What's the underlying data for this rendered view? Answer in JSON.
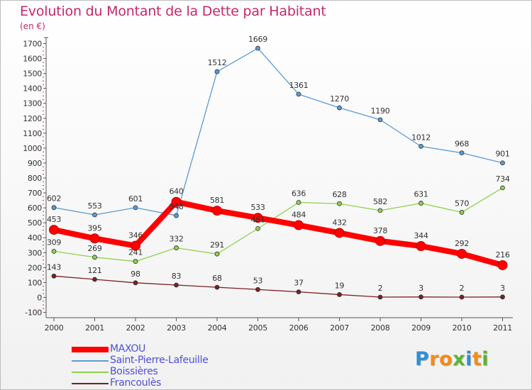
{
  "title": "Evolution du Montant de la Dette par Habitant",
  "subtitle": "(en €)",
  "logo": {
    "letters": [
      "P",
      "r",
      "o",
      "x",
      "i",
      "t",
      "i"
    ],
    "colors": [
      "#2f8fd8",
      "#f28c1c",
      "#f28c1c",
      "#5bb432",
      "#2f8fd8",
      "#f28c1c",
      "#5bb432"
    ]
  },
  "chart_data": {
    "type": "line",
    "title": "Evolution du Montant de la Dette par Habitant",
    "ylabel": "(en €)",
    "xlabel": "",
    "x": [
      "2000",
      "2001",
      "2002",
      "2003",
      "2004",
      "2005",
      "2006",
      "2007",
      "2008",
      "2009",
      "2010",
      "2011"
    ],
    "ylim": [
      -100,
      1700
    ],
    "yticks": [
      "-100",
      "0",
      "100",
      "200",
      "300",
      "400",
      "500",
      "600",
      "700",
      "800",
      "900",
      "1000",
      "1100",
      "1200",
      "1300",
      "1400",
      "1500",
      "1600",
      "1700"
    ],
    "grid": false,
    "legend_position": "bottom-left",
    "series": [
      {
        "name": "MAXOU",
        "color": "#ff0000",
        "values": [
          453,
          395,
          346,
          640,
          581,
          533,
          484,
          432,
          378,
          344,
          292,
          216
        ]
      },
      {
        "name": "Saint-Pierre-Lafeuille",
        "color": "#5b9bd5",
        "values": [
          602,
          553,
          601,
          548,
          1512,
          1669,
          1361,
          1270,
          1190,
          1012,
          968,
          901
        ]
      },
      {
        "name": "Boissières",
        "color": "#8fd14f",
        "values": [
          309,
          269,
          241,
          332,
          291,
          461,
          636,
          628,
          582,
          631,
          570,
          734
        ]
      },
      {
        "name": "Francoulès",
        "color": "#7a2020",
        "values": [
          143,
          121,
          98,
          83,
          68,
          53,
          37,
          19,
          2,
          3,
          2,
          3
        ]
      }
    ]
  }
}
